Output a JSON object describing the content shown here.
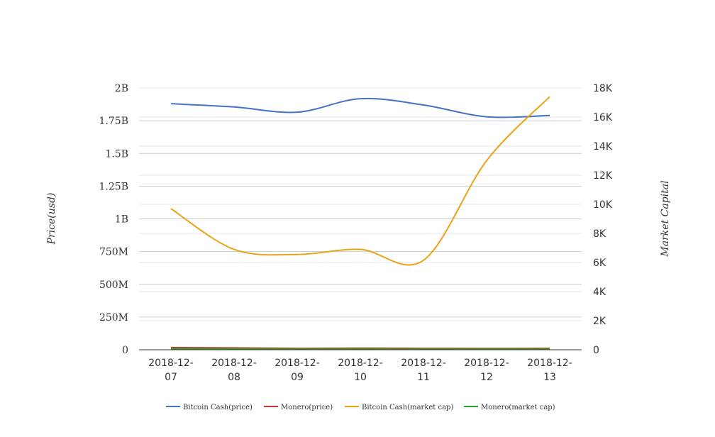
{
  "chart_data": {
    "type": "line",
    "categories": [
      "2018-12-07",
      "2018-12-08",
      "2018-12-09",
      "2018-12-10",
      "2018-12-11",
      "2018-12-12",
      "2018-12-13"
    ],
    "y_left": {
      "label": "Price(usd)",
      "range": [
        0,
        2000000000
      ],
      "ticks": [
        {
          "value": 0,
          "label": "0"
        },
        {
          "value": 250000000,
          "label": "250M"
        },
        {
          "value": 500000000,
          "label": "500M"
        },
        {
          "value": 750000000,
          "label": "750M"
        },
        {
          "value": 1000000000,
          "label": "1B"
        },
        {
          "value": 1250000000,
          "label": "1.25B"
        },
        {
          "value": 1500000000,
          "label": "1.5B"
        },
        {
          "value": 1750000000,
          "label": "1.75B"
        },
        {
          "value": 2000000000,
          "label": "2B"
        }
      ]
    },
    "y_right": {
      "label": "Market Capital",
      "range": [
        0,
        18000
      ],
      "ticks": [
        {
          "value": 0,
          "label": "0"
        },
        {
          "value": 2000,
          "label": "2K"
        },
        {
          "value": 4000,
          "label": "4K"
        },
        {
          "value": 6000,
          "label": "6K"
        },
        {
          "value": 8000,
          "label": "8K"
        },
        {
          "value": 10000,
          "label": "10K"
        },
        {
          "value": 12000,
          "label": "12K"
        },
        {
          "value": 14000,
          "label": "14K"
        },
        {
          "value": 16000,
          "label": "16K"
        },
        {
          "value": 18000,
          "label": "18K"
        }
      ]
    },
    "grid": true,
    "legend_position": "bottom",
    "series": [
      {
        "name": "Bitcoin Cash(price)",
        "axis": "left",
        "color": "#4472c4",
        "values": [
          1880000000,
          1855000000,
          1815000000,
          1918000000,
          1870000000,
          1780000000,
          1790000000
        ]
      },
      {
        "name": "Monero(price)",
        "axis": "left",
        "color": "#c0392b",
        "values": [
          17000000,
          14000000,
          11000000,
          12000000,
          11000000,
          10000000,
          11000000
        ]
      },
      {
        "name": "Bitcoin Cash(market cap)",
        "axis": "right",
        "color": "#e8a317",
        "values": [
          9700,
          6900,
          6550,
          6900,
          6150,
          13000,
          17400
        ]
      },
      {
        "name": "Monero(market cap)",
        "axis": "right",
        "color": "#2ca02c",
        "values": [
          60,
          55,
          50,
          52,
          50,
          48,
          50
        ]
      }
    ]
  }
}
